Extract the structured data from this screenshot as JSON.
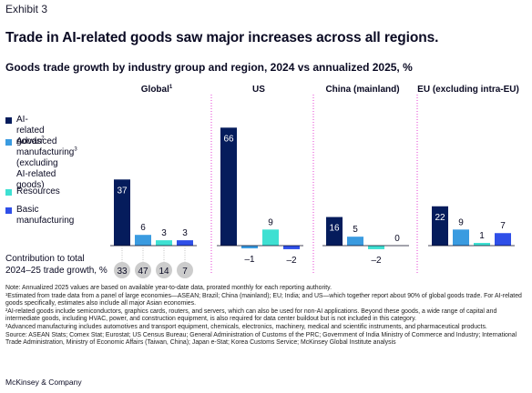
{
  "exhibit": "Exhibit 3",
  "title": "Trade in AI-related goods saw major increases across all regions.",
  "subtitle": "Goods trade growth by industry group and region, 2024 vs annualized 2025, %",
  "colors": {
    "ai": "#051c5c",
    "advanced": "#3a9be0",
    "resources": "#3ee0d2",
    "basic": "#2f4fe8",
    "divider": "#e63fd3",
    "circle": "#cccccc"
  },
  "legend": [
    {
      "label": "AI-related goods",
      "sup": "2",
      "color_key": "ai"
    },
    {
      "label": "Advanced\nmanufacturing",
      "sup": "3",
      "label_after": "\n(excluding\nAI-related goods)",
      "color_key": "advanced"
    },
    {
      "label": "Resources",
      "sup": "",
      "color_key": "resources"
    },
    {
      "label": "Basic\nmanufacturing",
      "sup": "",
      "color_key": "basic"
    }
  ],
  "contribution_label": "Contribution to total\n2024–25 trade growth, %",
  "chart_data": {
    "type": "bar",
    "categories": [
      "AI-related goods",
      "Advanced manufacturing (excluding AI-related goods)",
      "Resources",
      "Basic manufacturing"
    ],
    "panels": [
      {
        "region": "Global",
        "sup": "1",
        "values": [
          37,
          6,
          3,
          3
        ],
        "labels": [
          "37",
          "6",
          "3",
          "3"
        ],
        "contribution": [
          "33",
          "47",
          "14",
          "7"
        ]
      },
      {
        "region": "US",
        "sup": "",
        "values": [
          66,
          -1,
          9,
          -2
        ],
        "labels": [
          "66",
          "–1",
          "9",
          "–2"
        ]
      },
      {
        "region": "China (mainland)",
        "sup": "",
        "values": [
          16,
          5,
          -2,
          0
        ],
        "labels": [
          "16",
          "5",
          "–2",
          "0"
        ]
      },
      {
        "region": "EU (excluding intra-EU)",
        "sup": "",
        "values": [
          22,
          9,
          1,
          7
        ],
        "labels": [
          "22",
          "9",
          "1",
          "7"
        ]
      }
    ]
  },
  "notes": [
    "Note: Annualized 2025 values are based on available year-to-date data, prorated monthly for each reporting authority.",
    "¹Estimated from trade data from a panel of large economies—ASEAN; Brazil; China (mainland); EU; India; and US—which together report about 90% of global goods trade. For AI-related goods specifically, estimates also include all major Asian economies.",
    "²AI-related goods include semiconductors, graphics cards, routers, and servers, which can also be used for non-AI applications. Beyond these goods, a wide range of capital and intermediate goods, including HVAC, power, and construction equipment, is also required for data center buildout but is not included in this category.",
    "³Advanced manufacturing includes automotives and transport equipment, chemicals, electronics, machinery, medical and scientific instruments, and pharmaceutical products.",
    "Source: ASEAN Stats; Comex Stat; Eurostat; US Census Bureau; General Administration of Customs of the PRC; Government of India Ministry of Commerce and Industry; International Trade Administration, Ministry of Economic Affairs (Taiwan, China); Japan e-Stat; Korea Customs Service; McKinsey Global Institute analysis"
  ],
  "brand": "McKinsey & Company"
}
